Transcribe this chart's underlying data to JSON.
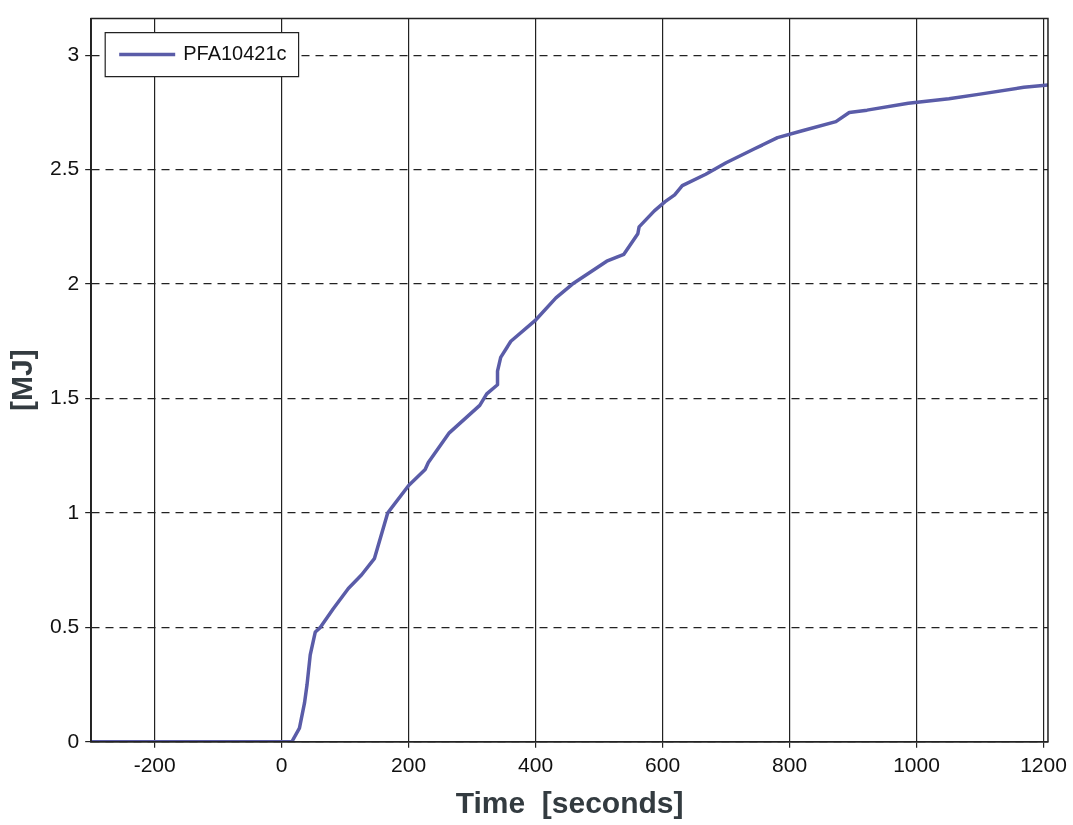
{
  "chart_data": {
    "type": "line",
    "xlabel": "Time  [seconds]",
    "ylabel": "[MJ]",
    "xlim": [
      -300,
      1207
    ],
    "ylim": [
      0,
      3.16
    ],
    "xticks": [
      -200,
      0,
      200,
      400,
      600,
      800,
      1000,
      1200
    ],
    "yticks": [
      0,
      0.5,
      1,
      1.5,
      2,
      2.5,
      3
    ],
    "grid": true,
    "legend": "top left",
    "line_style": "solid",
    "marker": "none",
    "series": [
      {
        "name": "PFA10421c",
        "color": "#5a5ca8",
        "x": [
          -300,
          0,
          16,
          28,
          36,
          40,
          45,
          53,
          61,
          81,
          105,
          126,
          146,
          167,
          200,
          226,
          231,
          264,
          312,
          323,
          340,
          340,
          345,
          361,
          399,
          432,
          458,
          512,
          539,
          561,
          563,
          587,
          604,
          619,
          631,
          668,
          700,
          744,
          781,
          820,
          873,
          894,
          922,
          987,
          1051,
          1100,
          1169,
          1207
        ],
        "values": [
          0,
          0,
          0,
          0.06,
          0.17,
          0.25,
          0.38,
          0.48,
          0.5,
          0.58,
          0.67,
          0.73,
          0.8,
          1.0,
          1.12,
          1.19,
          1.22,
          1.35,
          1.47,
          1.52,
          1.56,
          1.62,
          1.68,
          1.75,
          1.84,
          1.94,
          2.0,
          2.1,
          2.13,
          2.22,
          2.25,
          2.32,
          2.36,
          2.39,
          2.43,
          2.48,
          2.53,
          2.59,
          2.64,
          2.67,
          2.71,
          2.75,
          2.76,
          2.79,
          2.81,
          2.83,
          2.86,
          2.87
        ]
      }
    ]
  }
}
